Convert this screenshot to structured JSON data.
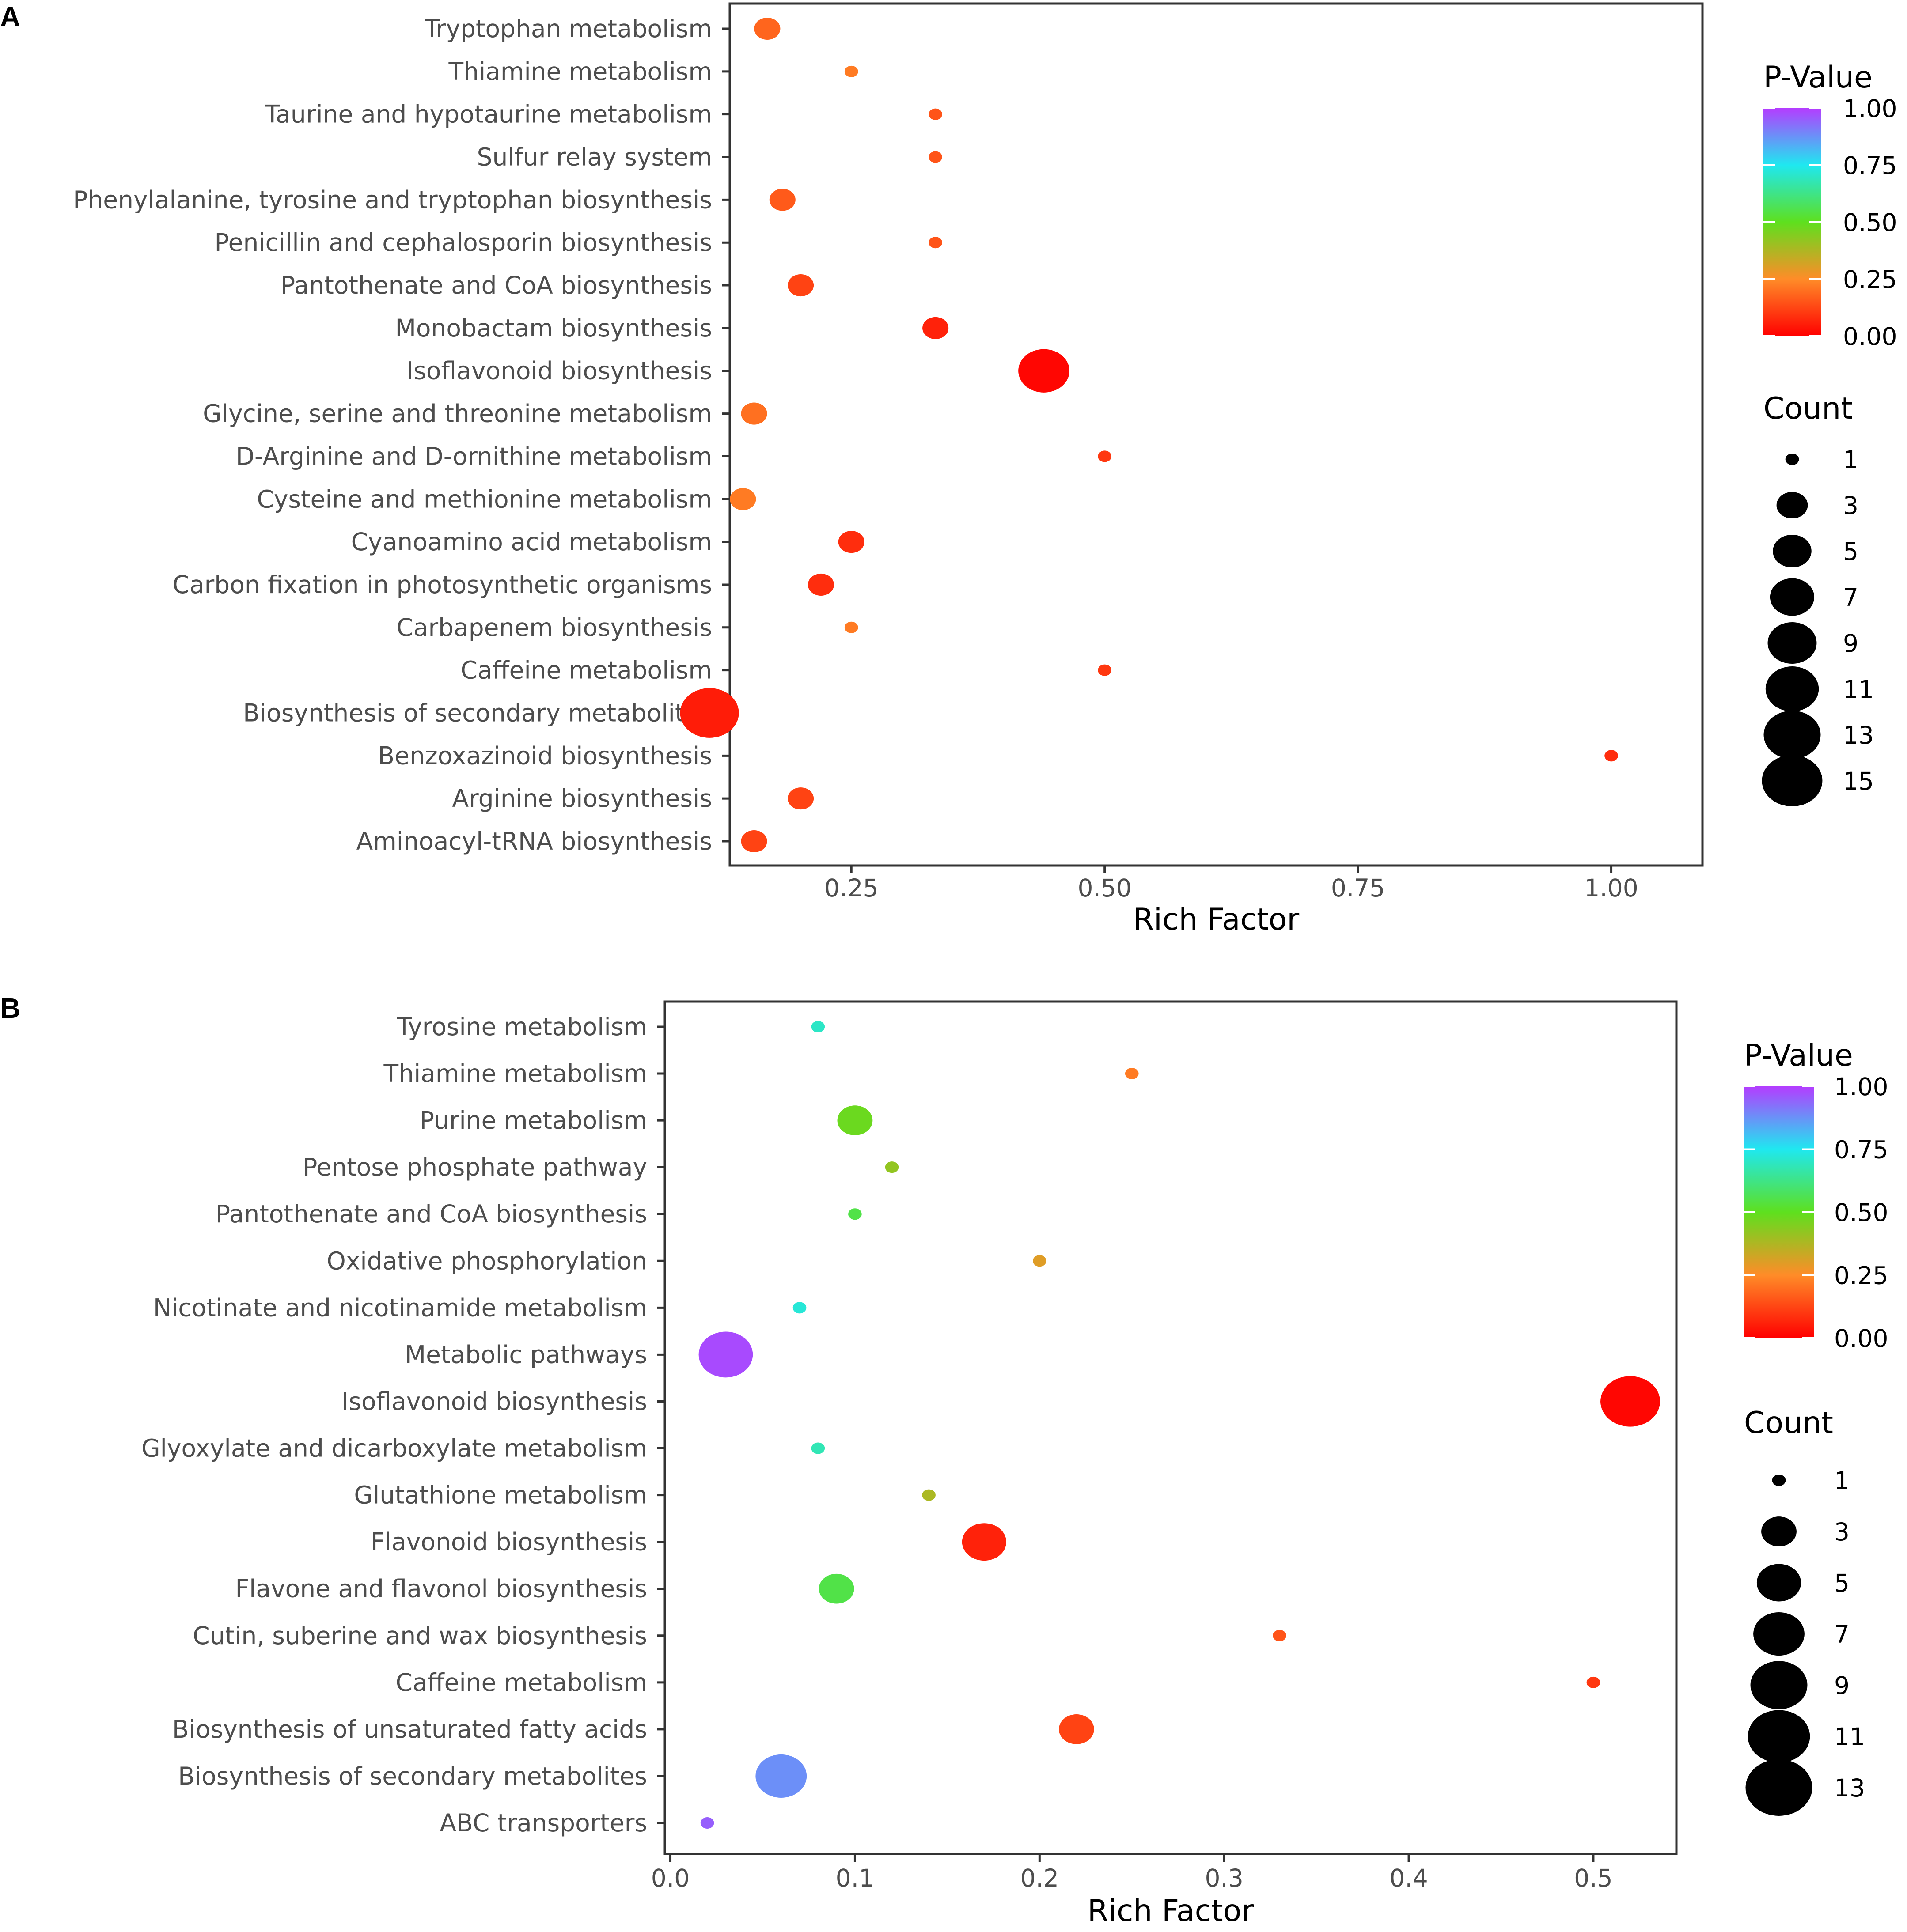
{
  "colors": {
    "scale": [
      "#ff0000",
      "#ff8c28",
      "#5ee01e",
      "#1fe8f0",
      "#b43cff"
    ],
    "point_fill": "#000000"
  },
  "chart_data": [
    {
      "panel": "A",
      "type": "scatter",
      "xlabel": "Rich Factor",
      "ylabel": "",
      "xlim": [
        0.13,
        1.09
      ],
      "xticks": [
        0.25,
        0.5,
        0.75,
        1.0
      ],
      "xtick_labels": [
        "0.25",
        "0.50",
        "0.75",
        "1.00"
      ],
      "grid": false,
      "legend": {
        "color_title": "P-Value",
        "color_ticks": [
          1.0,
          0.75,
          0.5,
          0.25,
          0.0
        ],
        "color_tick_labels": [
          "1.00",
          "0.75",
          "0.50",
          "0.25",
          "0.00"
        ],
        "size_title": "Count",
        "size_values": [
          1,
          3,
          5,
          7,
          9,
          11,
          13,
          15
        ],
        "size_labels": [
          "1",
          "3",
          "5",
          "7",
          "9",
          "11",
          "13",
          "15"
        ]
      },
      "categories": [
        "Tryptophan metabolism",
        "Thiamine metabolism",
        "Taurine and hypotaurine metabolism",
        "Sulfur relay system",
        "Phenylalanine, tyrosine and tryptophan biosynthesis",
        "Penicillin and cephalosporin biosynthesis",
        "Pantothenate and CoA biosynthesis",
        "Monobactam biosynthesis",
        "Isoflavonoid biosynthesis",
        "Glycine, serine and threonine metabolism",
        "D-Arginine and D-ornithine metabolism",
        "Cysteine and methionine metabolism",
        "Cyanoamino acid metabolism",
        "Carbon fixation in photosynthetic organisms",
        "Carbapenem biosynthesis",
        "Caffeine metabolism",
        "Biosynthesis of secondary metabolites",
        "Benzoxazinoid biosynthesis",
        "Arginine biosynthesis",
        "Aminoacyl-tRNA biosynthesis"
      ],
      "rich_factor": [
        0.167,
        0.25,
        0.333,
        0.333,
        0.182,
        0.333,
        0.2,
        0.333,
        0.44,
        0.154,
        0.5,
        0.143,
        0.25,
        0.22,
        0.25,
        0.5,
        0.11,
        1.0,
        0.2,
        0.154
      ],
      "count": [
        2,
        1,
        1,
        1,
        2,
        1,
        2,
        2,
        10,
        2,
        1,
        2,
        2,
        2,
        1,
        1,
        14,
        1,
        2,
        2
      ],
      "p_value": [
        0.18,
        0.22,
        0.15,
        0.15,
        0.16,
        0.15,
        0.12,
        0.06,
        0.01,
        0.2,
        0.1,
        0.22,
        0.08,
        0.08,
        0.22,
        0.1,
        0.05,
        0.08,
        0.12,
        0.12
      ]
    },
    {
      "panel": "B",
      "type": "scatter",
      "xlabel": "Rich Factor",
      "ylabel": "",
      "xlim": [
        -0.003,
        0.545
      ],
      "xticks": [
        0.0,
        0.1,
        0.2,
        0.3,
        0.4,
        0.5
      ],
      "xtick_labels": [
        "0.0",
        "0.1",
        "0.2",
        "0.3",
        "0.4",
        "0.5"
      ],
      "grid": false,
      "legend": {
        "color_title": "P-Value",
        "color_ticks": [
          1.0,
          0.75,
          0.5,
          0.25,
          0.0
        ],
        "color_tick_labels": [
          "1.00",
          "0.75",
          "0.50",
          "0.25",
          "0.00"
        ],
        "size_title": "Count",
        "size_values": [
          1,
          3,
          5,
          7,
          9,
          11,
          13
        ],
        "size_labels": [
          "1",
          "3",
          "5",
          "7",
          "9",
          "11",
          "13"
        ]
      },
      "categories": [
        "Tyrosine metabolism",
        "Thiamine metabolism",
        "Purine metabolism",
        "Pentose phosphate pathway",
        "Pantothenate and CoA biosynthesis",
        "Oxidative phosphorylation",
        "Nicotinate and nicotinamide metabolism",
        "Metabolic pathways",
        "Isoflavonoid biosynthesis",
        "Glyoxylate and dicarboxylate metabolism",
        "Glutathione metabolism",
        "Flavonoid biosynthesis",
        "Flavone and flavonol biosynthesis",
        "Cutin, suberine and wax biosynthesis",
        "Caffeine metabolism",
        "Biosynthesis of unsaturated fatty acids",
        "Biosynthesis of secondary metabolites",
        "ABC transporters"
      ],
      "rich_factor": [
        0.08,
        0.25,
        0.1,
        0.12,
        0.1,
        0.2,
        0.07,
        0.03,
        0.52,
        0.08,
        0.14,
        0.17,
        0.09,
        0.33,
        0.5,
        0.22,
        0.06,
        0.02
      ],
      "count": [
        1,
        1,
        3,
        1,
        1,
        1,
        1,
        8,
        10,
        1,
        1,
        5,
        3,
        1,
        1,
        3,
        7,
        1
      ],
      "p_value": [
        0.7,
        0.22,
        0.48,
        0.42,
        0.55,
        0.3,
        0.72,
        0.98,
        0.01,
        0.68,
        0.38,
        0.06,
        0.55,
        0.15,
        0.1,
        0.12,
        0.88,
        0.95
      ]
    }
  ]
}
